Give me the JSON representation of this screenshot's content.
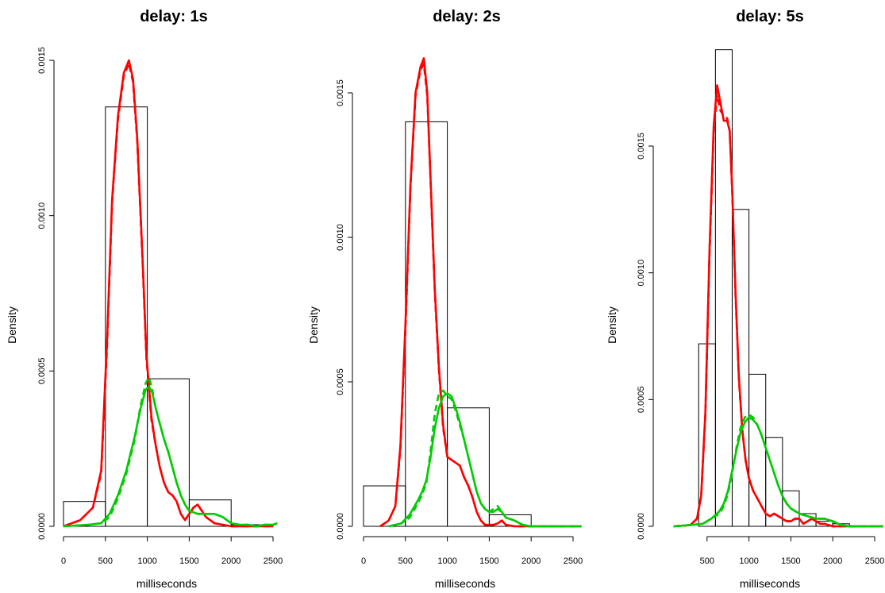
{
  "chart_data": [
    {
      "type": "histogram+density",
      "title": "delay: 1s",
      "xlabel": "milliseconds",
      "ylabel": "Density",
      "xlim": [
        -200,
        2600
      ],
      "ylim": [
        0,
        0.0015
      ],
      "xticks": [
        0,
        500,
        1000,
        1500,
        2000,
        2500
      ],
      "xtick_labels": [
        "0",
        "500",
        "1000",
        "1500",
        "2000",
        "2500"
      ],
      "yticks": [
        0,
        0.0005,
        0.001,
        0.0015
      ],
      "ytick_labels": [
        "0.0000",
        "0.0005",
        "0.0010",
        "0.0015"
      ],
      "histogram": {
        "breaks": [
          0,
          500,
          1000,
          1500,
          2000,
          2500
        ],
        "density": [
          8e-05,
          0.00135,
          0.000475,
          8.5e-05,
          5e-06
        ],
        "color": "#000000"
      },
      "series": [
        {
          "color": "#ff0000",
          "dash": false,
          "x": [
            0,
            200,
            350,
            450,
            520,
            580,
            650,
            720,
            780,
            830,
            880,
            940,
            990,
            1050,
            1100,
            1150,
            1200,
            1250,
            1300,
            1350,
            1400,
            1450,
            1500,
            1550,
            1600,
            1650,
            1700,
            1750,
            1800,
            1900,
            2000,
            2500
          ],
          "y": [
            0,
            2e-05,
            6e-05,
            0.00018,
            0.0006,
            0.00105,
            0.00132,
            0.00146,
            0.0015,
            0.00144,
            0.00125,
            0.00088,
            0.00055,
            0.00035,
            0.00026,
            0.00019,
            0.00014,
            0.00011,
            0.0001,
            8e-05,
            4e-05,
            2e-05,
            4e-05,
            6e-05,
            7e-05,
            5e-05,
            3e-05,
            2e-05,
            1e-05,
            5e-06,
            0,
            0
          ]
        },
        {
          "color": "#ff0000",
          "dash": true,
          "x": [
            0,
            200,
            350,
            450,
            520,
            580,
            650,
            720,
            780,
            830,
            880,
            940,
            990,
            1050,
            1100,
            1150,
            1200,
            1250,
            1300,
            1350,
            1400,
            1450,
            1500,
            1550,
            1600,
            1650,
            1700,
            1750,
            1800,
            1900,
            2000,
            2500
          ],
          "y": [
            0,
            2e-05,
            6e-05,
            0.00017,
            0.00058,
            0.00104,
            0.00131,
            0.00145,
            0.00149,
            0.00143,
            0.00124,
            0.00087,
            0.00054,
            0.00034,
            0.00026,
            0.00019,
            0.00014,
            0.00011,
            0.0001,
            8e-05,
            4e-05,
            2e-05,
            4e-05,
            6e-05,
            7e-05,
            5e-05,
            3e-05,
            2e-05,
            1e-05,
            5e-06,
            0,
            0
          ]
        },
        {
          "color": "#00cc00",
          "dash": false,
          "x": [
            0,
            300,
            450,
            550,
            650,
            750,
            850,
            920,
            980,
            1020,
            1060,
            1100,
            1150,
            1200,
            1250,
            1300,
            1350,
            1400,
            1450,
            1500,
            1600,
            1700,
            1800,
            1900,
            2000,
            2100,
            2200,
            2300,
            2400,
            2500,
            2550
          ],
          "y": [
            0,
            5e-06,
            1e-05,
            4e-05,
            0.0001,
            0.00018,
            0.00029,
            0.00038,
            0.00044,
            0.00045,
            0.00043,
            0.00038,
            0.00033,
            0.00028,
            0.00024,
            0.00019,
            0.00014,
            0.0001,
            7e-05,
            5e-05,
            4e-05,
            4e-05,
            4e-05,
            3e-05,
            1e-05,
            5e-06,
            5e-06,
            0,
            5e-06,
            5e-06,
            1e-05
          ]
        },
        {
          "color": "#00cc00",
          "dash": true,
          "x": [
            0,
            300,
            450,
            550,
            650,
            750,
            850,
            920,
            980,
            1020,
            1060,
            1100,
            1150,
            1200,
            1250,
            1300,
            1350,
            1400,
            1450,
            1500,
            1600,
            1700,
            1800,
            1900,
            2000,
            2100,
            2200,
            2300,
            2400,
            2500,
            2550
          ],
          "y": [
            0,
            5e-06,
            1e-05,
            3e-05,
            9e-05,
            0.00017,
            0.00028,
            0.00039,
            0.00046,
            0.00048,
            0.00044,
            0.00038,
            0.00033,
            0.00028,
            0.00024,
            0.00019,
            0.00014,
            0.0001,
            7e-05,
            5e-05,
            4e-05,
            4e-05,
            4e-05,
            3e-05,
            1e-05,
            5e-06,
            5e-06,
            0,
            5e-06,
            5e-06,
            1e-05
          ]
        }
      ]
    },
    {
      "type": "histogram+density",
      "title": "delay: 2s",
      "xlabel": "milliseconds",
      "ylabel": "Density",
      "xlim": [
        0,
        2600
      ],
      "ylim": [
        0,
        0.0015
      ],
      "xticks": [
        0,
        500,
        1000,
        1500,
        2000,
        2500
      ],
      "xtick_labels": [
        "0",
        "500",
        "1000",
        "1500",
        "2000",
        "2500"
      ],
      "yticks": [
        0,
        0.0005,
        0.001,
        0.0015
      ],
      "ytick_labels": [
        "0.0000",
        "0.0005",
        "0.0010",
        "0.0015"
      ],
      "histogram": {
        "breaks": [
          0,
          500,
          1000,
          1500,
          2000
        ],
        "density": [
          0.00014,
          0.0014,
          0.00041,
          4e-05
        ],
        "color": "#000000"
      },
      "series": [
        {
          "color": "#ff0000",
          "dash": false,
          "x": [
            200,
            300,
            380,
            440,
            500,
            560,
            620,
            680,
            720,
            760,
            800,
            850,
            900,
            950,
            1000,
            1050,
            1100,
            1150,
            1200,
            1250,
            1300,
            1350,
            1400,
            1450,
            1500,
            1550,
            1600,
            1650,
            1700,
            1800,
            2000,
            2600
          ],
          "y": [
            0,
            2e-05,
            7e-05,
            0.00028,
            0.0007,
            0.00118,
            0.0015,
            0.00159,
            0.00162,
            0.0015,
            0.0012,
            0.00082,
            0.00055,
            0.00035,
            0.00024,
            0.00023,
            0.00022,
            0.00021,
            0.00017,
            0.00014,
            0.0001,
            5e-05,
            2e-05,
            5e-06,
            5e-06,
            5e-06,
            1e-05,
            2e-05,
            5e-06,
            0,
            0,
            0
          ]
        },
        {
          "color": "#ff0000",
          "dash": true,
          "x": [
            200,
            300,
            380,
            440,
            500,
            560,
            620,
            680,
            720,
            760,
            800,
            850,
            900,
            950,
            1000,
            1050,
            1100,
            1150,
            1200,
            1250,
            1300,
            1350,
            1400,
            1450,
            1500,
            1550,
            1600,
            1650,
            1700,
            1800,
            2000,
            2600
          ],
          "y": [
            0,
            2e-05,
            7e-05,
            0.00027,
            0.00068,
            0.00117,
            0.00149,
            0.00158,
            0.0016,
            0.00149,
            0.00119,
            0.00081,
            0.00054,
            0.00034,
            0.00024,
            0.00023,
            0.00022,
            0.00021,
            0.00017,
            0.00014,
            0.0001,
            5e-05,
            2e-05,
            5e-06,
            5e-06,
            5e-06,
            1e-05,
            2e-05,
            5e-06,
            0,
            0,
            0
          ]
        },
        {
          "color": "#00cc00",
          "dash": false,
          "x": [
            300,
            450,
            550,
            650,
            700,
            750,
            800,
            850,
            900,
            950,
            1000,
            1050,
            1100,
            1150,
            1200,
            1250,
            1300,
            1350,
            1400,
            1450,
            1500,
            1550,
            1600,
            1650,
            1700,
            1800,
            1900,
            2000,
            2200,
            2400,
            2600
          ],
          "y": [
            0,
            1e-05,
            4e-05,
            9e-05,
            0.00012,
            0.00016,
            0.00024,
            0.00034,
            0.00041,
            0.00045,
            0.00046,
            0.00045,
            0.00041,
            0.00036,
            0.0003,
            0.00024,
            0.00018,
            0.00012,
            8e-05,
            6e-05,
            5e-05,
            5e-05,
            6e-05,
            5e-05,
            3e-05,
            2e-05,
            5e-06,
            0,
            0,
            0,
            0
          ]
        },
        {
          "color": "#00cc00",
          "dash": true,
          "x": [
            300,
            450,
            550,
            650,
            700,
            750,
            800,
            850,
            900,
            950,
            1000,
            1050,
            1100,
            1150,
            1200,
            1250,
            1300,
            1350,
            1400,
            1450,
            1500,
            1550,
            1600,
            1650,
            1700,
            1800,
            1900,
            2000,
            2200,
            2400,
            2600
          ],
          "y": [
            0,
            1e-05,
            3e-05,
            8e-05,
            0.00011,
            0.00015,
            0.00026,
            0.00039,
            0.00046,
            0.00047,
            0.00045,
            0.00044,
            0.0004,
            0.00035,
            0.0003,
            0.00024,
            0.00018,
            0.00012,
            8e-05,
            6e-05,
            5e-05,
            6e-05,
            7e-05,
            5e-05,
            3e-05,
            2e-05,
            5e-06,
            0,
            0,
            0,
            0
          ]
        }
      ]
    },
    {
      "type": "histogram+density",
      "title": "delay: 5s",
      "xlabel": "milliseconds",
      "ylabel": "Density",
      "xlim": [
        0,
        2600
      ],
      "ylim": [
        0,
        0.0015
      ],
      "xticks": [
        500,
        1000,
        1500,
        2000,
        2500
      ],
      "xtick_labels": [
        "500",
        "1000",
        "1500",
        "2000",
        "2500"
      ],
      "yticks": [
        0,
        0.0005,
        0.001,
        0.0015
      ],
      "ytick_labels": [
        "0.0000",
        "0.0005",
        "0.0010",
        "0.0015"
      ],
      "histogram": {
        "breaks": [
          400,
          600,
          800,
          1000,
          1200,
          1400,
          1600,
          1800,
          2000,
          2200
        ],
        "density": [
          0.00072,
          0.00188,
          0.00125,
          0.0006,
          0.00035,
          0.00014,
          5e-05,
          2e-05,
          1e-05
        ],
        "color": "#000000"
      },
      "series": [
        {
          "color": "#ff0000",
          "dash": false,
          "x": [
            100,
            300,
            380,
            430,
            480,
            530,
            580,
            620,
            660,
            700,
            740,
            770,
            800,
            840,
            880,
            920,
            960,
            1000,
            1050,
            1100,
            1150,
            1200,
            1250,
            1300,
            1350,
            1400,
            1450,
            1500,
            1550,
            1600,
            1650,
            1700,
            1750,
            1800,
            1850,
            1900,
            2000,
            2200,
            2600
          ],
          "y": [
            0,
            5e-06,
            3e-05,
            0.00012,
            0.00045,
            0.0011,
            0.00158,
            0.00174,
            0.00167,
            0.0016,
            0.0016,
            0.00156,
            0.00133,
            0.00092,
            0.00059,
            0.00038,
            0.00026,
            0.00019,
            0.00014,
            0.00011,
            8e-05,
            5e-05,
            4e-05,
            5e-05,
            4e-05,
            3e-05,
            2e-05,
            2e-05,
            3e-05,
            3e-05,
            1e-05,
            2e-05,
            3e-05,
            2e-05,
            1e-05,
            1e-05,
            0,
            0,
            0
          ]
        },
        {
          "color": "#ff0000",
          "dash": true,
          "x": [
            100,
            300,
            380,
            430,
            480,
            530,
            580,
            620,
            660,
            700,
            740,
            770,
            800,
            840,
            880,
            920,
            960,
            1000,
            1050,
            1100,
            1150,
            1200,
            1250,
            1300,
            1350,
            1400,
            1450,
            1500,
            1550,
            1600,
            1650,
            1700,
            1750,
            1800,
            1850,
            1900,
            2000,
            2200,
            2600
          ],
          "y": [
            0,
            5e-06,
            3e-05,
            0.00012,
            0.00044,
            0.00108,
            0.00156,
            0.0017,
            0.00164,
            0.00162,
            0.00161,
            0.00156,
            0.00132,
            0.00091,
            0.00058,
            0.00038,
            0.00026,
            0.00019,
            0.00014,
            0.00011,
            8e-05,
            5e-05,
            4e-05,
            5e-05,
            4e-05,
            3e-05,
            2e-05,
            2e-05,
            3e-05,
            3e-05,
            1e-05,
            2e-05,
            3e-05,
            2e-05,
            1e-05,
            1e-05,
            0,
            0,
            0
          ]
        },
        {
          "color": "#00cc00",
          "dash": false,
          "x": [
            100,
            300,
            450,
            550,
            650,
            700,
            750,
            800,
            850,
            900,
            950,
            1000,
            1050,
            1100,
            1150,
            1200,
            1250,
            1300,
            1350,
            1400,
            1450,
            1500,
            1550,
            1600,
            1700,
            1800,
            1900,
            2000,
            2100,
            2200,
            2600
          ],
          "y": [
            0,
            5e-06,
            1e-05,
            3e-05,
            6e-05,
            9e-05,
            0.00014,
            0.00022,
            0.0003,
            0.00037,
            0.00041,
            0.00043,
            0.00042,
            0.0004,
            0.00036,
            0.00031,
            0.00026,
            0.00021,
            0.00016,
            0.00012,
            9e-05,
            7e-05,
            6e-05,
            5e-05,
            4e-05,
            3e-05,
            3e-05,
            2e-05,
            5e-06,
            0,
            0
          ]
        },
        {
          "color": "#00cc00",
          "dash": true,
          "x": [
            100,
            300,
            450,
            550,
            650,
            700,
            750,
            800,
            850,
            900,
            950,
            1000,
            1050,
            1100,
            1150,
            1200,
            1250,
            1300,
            1350,
            1400,
            1450,
            1500,
            1550,
            1600,
            1700,
            1800,
            1900,
            2000,
            2100,
            2200,
            2600
          ],
          "y": [
            0,
            5e-06,
            1e-05,
            3e-05,
            5e-05,
            8e-05,
            0.00013,
            0.00021,
            0.00031,
            0.00039,
            0.00043,
            0.00044,
            0.00043,
            0.0004,
            0.00036,
            0.00031,
            0.00026,
            0.00021,
            0.00016,
            0.00012,
            9e-05,
            7e-05,
            6e-05,
            5e-05,
            4e-05,
            3e-05,
            3e-05,
            2e-05,
            5e-06,
            0,
            0
          ]
        }
      ]
    }
  ]
}
